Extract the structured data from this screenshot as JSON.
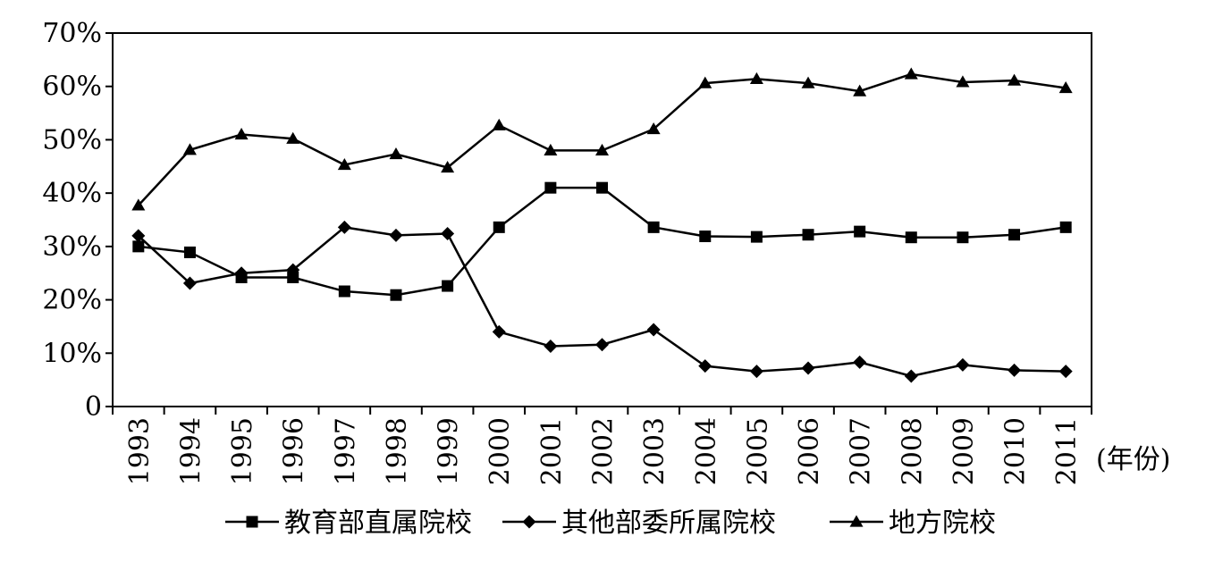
{
  "chart_data": {
    "type": "line",
    "categories": [
      "1993",
      "1994",
      "1995",
      "1996",
      "1997",
      "1998",
      "1999",
      "2000",
      "2001",
      "2002",
      "2003",
      "2004",
      "2005",
      "2006",
      "2007",
      "2008",
      "2009",
      "2010",
      "2011"
    ],
    "y_tick_labels": [
      "0",
      "10%",
      "20%",
      "30%",
      "40%",
      "50%",
      "60%",
      "70%"
    ],
    "ylim": [
      0,
      70
    ],
    "x_unit": "(年份)",
    "grid": false,
    "legend_position": "bottom",
    "series": [
      {
        "name": "教育部直属院校",
        "marker": "square",
        "values": [
          30.0,
          28.9,
          24.2,
          24.2,
          21.6,
          20.9,
          22.6,
          33.6,
          41.0,
          41.0,
          33.6,
          31.9,
          31.8,
          32.2,
          32.8,
          31.7,
          31.7,
          32.2,
          33.6
        ]
      },
      {
        "name": "其他部委所属院校",
        "marker": "diamond",
        "values": [
          32.0,
          23.1,
          25.0,
          25.6,
          33.6,
          32.1,
          32.4,
          14.0,
          11.3,
          11.6,
          14.4,
          7.6,
          6.6,
          7.2,
          8.3,
          5.7,
          7.8,
          6.8,
          6.6
        ]
      },
      {
        "name": "地方院校",
        "marker": "triangle",
        "values": [
          37.7,
          48.1,
          51.0,
          50.2,
          45.3,
          47.3,
          44.8,
          52.7,
          48.0,
          48.0,
          52.0,
          60.6,
          61.4,
          60.6,
          59.1,
          62.3,
          60.8,
          61.1,
          59.7
        ]
      }
    ]
  }
}
